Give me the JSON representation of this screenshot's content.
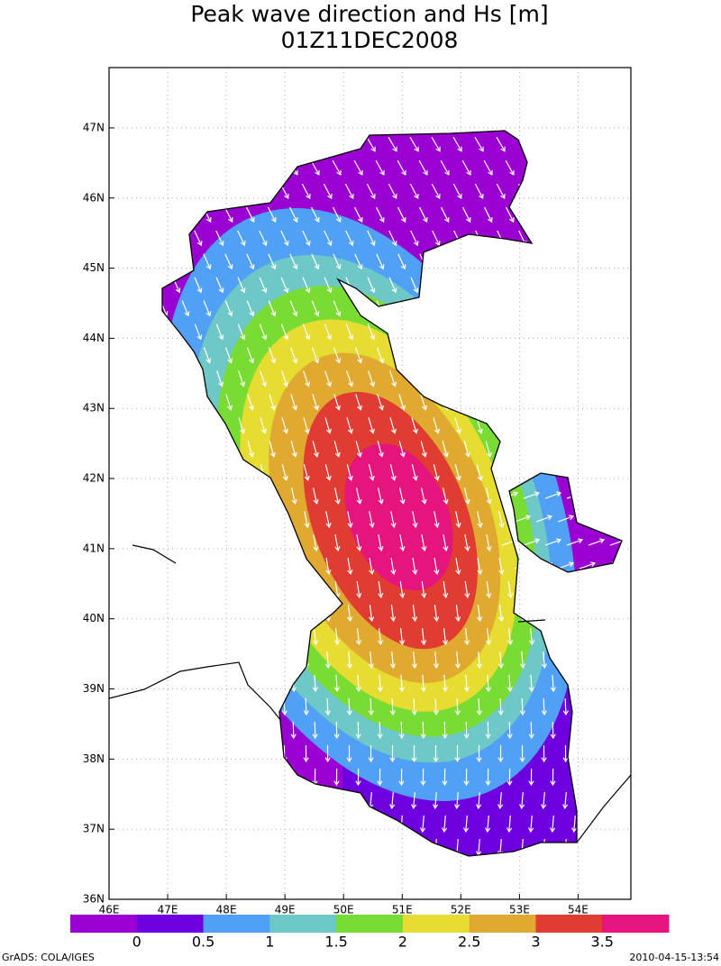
{
  "header": {
    "title": "Peak wave direction and Hs [m]",
    "subtitle": "01Z11DEC2008"
  },
  "map": {
    "xlim": [
      46,
      54.9
    ],
    "ylim": [
      36,
      47.86
    ],
    "xticks": [
      {
        "value": 46,
        "label": "46E"
      },
      {
        "value": 47,
        "label": "47E"
      },
      {
        "value": 48,
        "label": "48E"
      },
      {
        "value": 49,
        "label": "49E"
      },
      {
        "value": 50,
        "label": "50E"
      },
      {
        "value": 51,
        "label": "51E"
      },
      {
        "value": 52,
        "label": "52E"
      },
      {
        "value": 53,
        "label": "53E"
      },
      {
        "value": 54,
        "label": "54E"
      }
    ],
    "yticks": [
      {
        "value": 36,
        "label": "36N"
      },
      {
        "value": 37,
        "label": "37N"
      },
      {
        "value": 38,
        "label": "38N"
      },
      {
        "value": 39,
        "label": "39N"
      },
      {
        "value": 40,
        "label": "40N"
      },
      {
        "value": 41,
        "label": "41N"
      },
      {
        "value": 42,
        "label": "42N"
      },
      {
        "value": 43,
        "label": "43N"
      },
      {
        "value": 44,
        "label": "44N"
      },
      {
        "value": 45,
        "label": "45N"
      },
      {
        "value": 46,
        "label": "46N"
      },
      {
        "value": 47,
        "label": "47N"
      }
    ],
    "grid": true
  },
  "colorbar": {
    "colors": [
      "#9b00d2",
      "#6e00e0",
      "#50a0f5",
      "#6ec8c8",
      "#78dc32",
      "#e6dc32",
      "#e0aa30",
      "#e03c32",
      "#e6147d"
    ],
    "ticks": [
      0,
      0.5,
      1,
      1.5,
      2,
      2.5,
      3,
      3.5
    ]
  },
  "footer": {
    "left": "GrADS: COLA/IGES",
    "right": "2010-04-15-13:54"
  }
}
